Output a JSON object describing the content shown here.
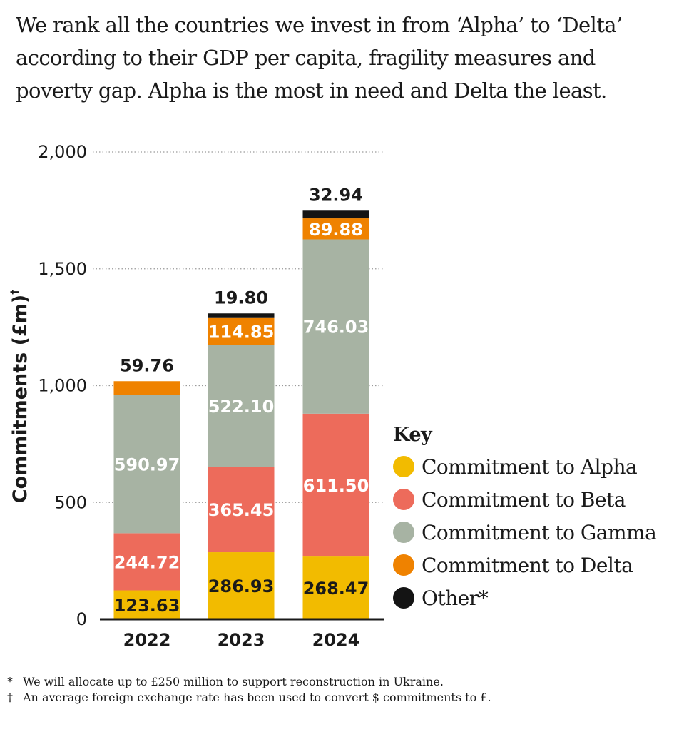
{
  "intro": "We rank all the countries we invest in from ‘Alpha’ to ‘Delta’ according to their GDP per capita, fragility measures and poverty gap. Alpha is the most in need and Delta the least.",
  "chart_data": {
    "type": "bar",
    "stacked": true,
    "categories": [
      "2022",
      "2023",
      "2024"
    ],
    "ylabel": "Commitments (£m)",
    "ylabel_mark": "†",
    "ylim": [
      0,
      2000
    ],
    "yticks": [
      0,
      500,
      1000,
      1500,
      2000
    ],
    "ytick_labels": [
      "0",
      "500",
      "1,000",
      "1,500",
      "2,000"
    ],
    "grid": "dotted horizontal",
    "series": [
      {
        "name": "Commitment to Alpha",
        "color": "#f2bb00",
        "label_color": "#1a1a1a",
        "values": [
          123.63,
          286.93,
          268.47
        ],
        "labels": [
          "123.63",
          "286.93",
          "268.47"
        ]
      },
      {
        "name": "Commitment to Beta",
        "color": "#ed6b5b",
        "label_color": "#ffffff",
        "values": [
          244.72,
          365.45,
          611.5
        ],
        "labels": [
          "244.72",
          "365.45",
          "611.50"
        ]
      },
      {
        "name": "Commitment to Gamma",
        "color": "#a7b3a3",
        "label_color": "#ffffff",
        "values": [
          590.97,
          522.1,
          746.03
        ],
        "labels": [
          "590.97",
          "522.10",
          "746.03"
        ]
      },
      {
        "name": "Commitment to Delta",
        "color": "#ef8200",
        "label_color": "#ffffff",
        "values": [
          59.76,
          114.85,
          89.88
        ],
        "labels": [
          "59.76",
          "114.85",
          "89.88"
        ],
        "label_position": [
          "above",
          "inside",
          "inside"
        ]
      },
      {
        "name": "Other*",
        "color": "#141414",
        "label_color": "#1a1a1a",
        "values": [
          0,
          19.8,
          32.94
        ],
        "labels": [
          "",
          "19.80",
          "32.94"
        ],
        "label_position": [
          "none",
          "above",
          "above"
        ]
      }
    ]
  },
  "legend": {
    "title": "Key"
  },
  "notes": [
    {
      "mark": "*",
      "text": "We will allocate up to £250 million to support reconstruction in Ukraine."
    },
    {
      "mark": "†",
      "text": "An average foreign exchange rate has been used to convert $ commitments to £."
    }
  ]
}
